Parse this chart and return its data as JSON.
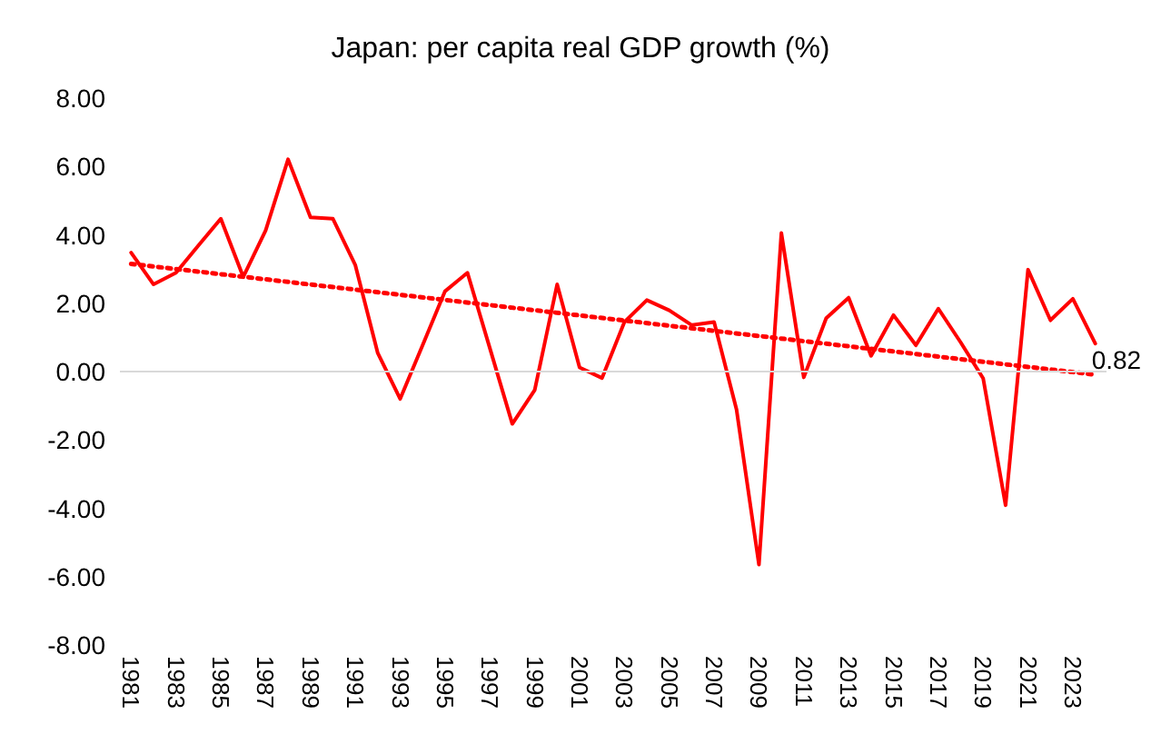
{
  "chart_data": {
    "type": "line",
    "title": "Japan: per capita real GDP growth (%)",
    "x": [
      1981,
      1982,
      1983,
      1984,
      1985,
      1986,
      1987,
      1988,
      1989,
      1990,
      1991,
      1992,
      1993,
      1994,
      1995,
      1996,
      1997,
      1998,
      1999,
      2000,
      2001,
      2002,
      2003,
      2004,
      2005,
      2006,
      2007,
      2008,
      2009,
      2010,
      2011,
      2012,
      2013,
      2014,
      2015,
      2016,
      2017,
      2018,
      2019,
      2020,
      2021,
      2022,
      2023,
      2024
    ],
    "series": [
      {
        "color": "#ff0000",
        "line_style": "solid",
        "values": [
          3.48,
          2.55,
          2.89,
          3.69,
          4.47,
          2.77,
          4.13,
          6.21,
          4.51,
          4.47,
          3.11,
          0.54,
          -0.8,
          0.77,
          2.35,
          2.89,
          0.68,
          -1.53,
          -0.54,
          2.55,
          0.12,
          -0.19,
          1.45,
          2.09,
          1.79,
          1.36,
          1.45,
          -1.11,
          -5.65,
          4.05,
          -0.17,
          1.56,
          2.16,
          0.46,
          1.65,
          0.77,
          1.84,
          0.85,
          -0.2,
          -3.91,
          2.98,
          1.5,
          2.13,
          0.82
        ],
        "value_labels": [
          null,
          null,
          null,
          null,
          null,
          null,
          null,
          null,
          null,
          null,
          null,
          null,
          null,
          null,
          null,
          null,
          null,
          null,
          null,
          null,
          null,
          null,
          null,
          null,
          null,
          null,
          null,
          null,
          null,
          null,
          null,
          null,
          null,
          null,
          null,
          null,
          null,
          null,
          null,
          null,
          null,
          null,
          null,
          "0.82"
        ]
      },
      {
        "type": "line",
        "color": "#ff0000",
        "line_style": "dotted",
        "x": [
          1981,
          2024
        ],
        "values": [
          3.15,
          -0.09
        ]
      }
    ],
    "xlim": [
      1980.5,
      2024.5
    ],
    "xticks": [
      1981,
      1983,
      1985,
      1987,
      1989,
      1991,
      1993,
      1995,
      1997,
      1999,
      2001,
      2003,
      2005,
      2007,
      2009,
      2011,
      2013,
      2015,
      2017,
      2019,
      2021,
      2023
    ],
    "ylim": [
      -8,
      8
    ],
    "yticks": [
      {
        "value": -8,
        "label": "-8.00"
      },
      {
        "value": -6,
        "label": "-6.00"
      },
      {
        "value": -4,
        "label": "-4.00"
      },
      {
        "value": -2,
        "label": "-2.00"
      },
      {
        "value": 0,
        "label": "0.00"
      },
      {
        "value": 2,
        "label": "2.00"
      },
      {
        "value": 4,
        "label": "4.00"
      },
      {
        "value": 6,
        "label": "6.00"
      },
      {
        "value": 8,
        "label": "8.00"
      }
    ],
    "ref_lines": [
      {
        "axis": "y",
        "value": 0,
        "color": "#d9d9d9"
      }
    ],
    "grid": false,
    "marker": "none"
  }
}
